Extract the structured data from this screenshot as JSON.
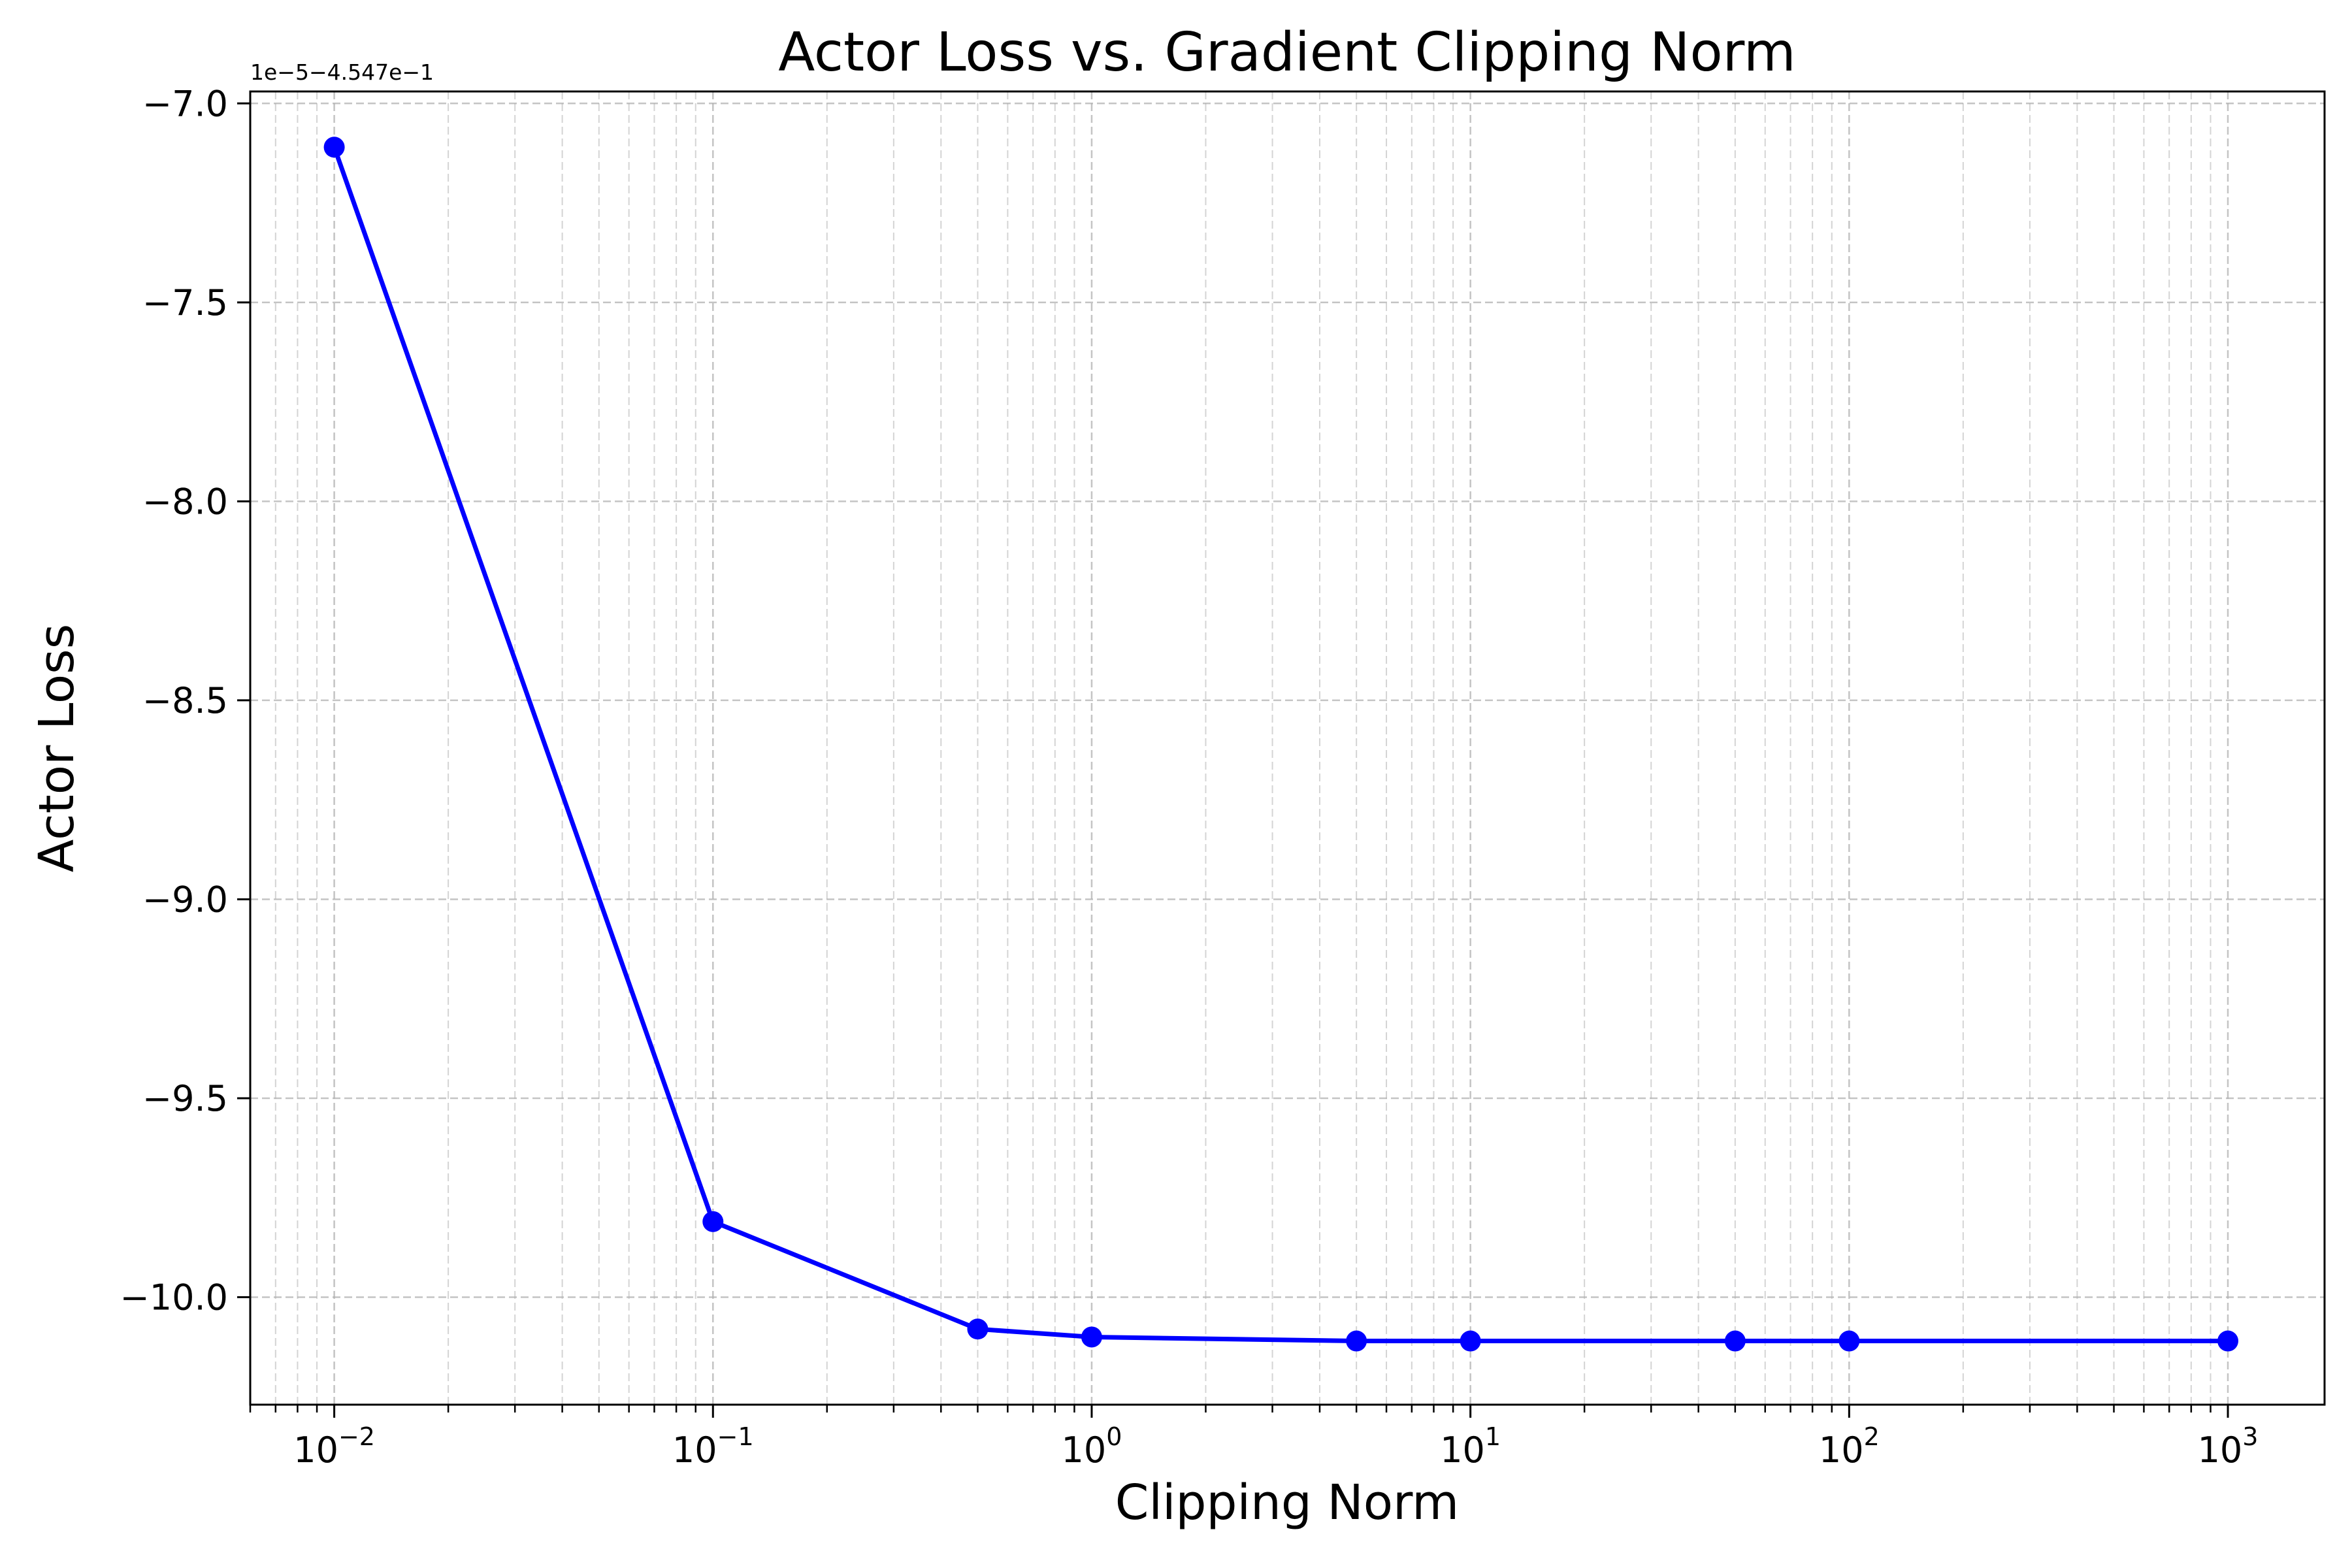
{
  "chart_data": {
    "type": "line",
    "title": "Actor Loss vs. Gradient Clipping Norm",
    "xlabel": "Clipping Norm",
    "ylabel": "Actor Loss",
    "x_scale": "log",
    "xlim": [
      0.006,
      1800
    ],
    "ylim": [
      -10.27,
      -6.97
    ],
    "x_ticks": [
      {
        "value": 0.01,
        "base": "10",
        "exp": "−2"
      },
      {
        "value": 0.1,
        "base": "10",
        "exp": "−1"
      },
      {
        "value": 1,
        "base": "10",
        "exp": "0"
      },
      {
        "value": 10,
        "base": "10",
        "exp": "1"
      },
      {
        "value": 100,
        "base": "10",
        "exp": "2"
      },
      {
        "value": 1000,
        "base": "10",
        "exp": "3"
      }
    ],
    "y_ticks": [
      {
        "value": -7.0,
        "label": "−7.0"
      },
      {
        "value": -7.5,
        "label": "−7.5"
      },
      {
        "value": -8.0,
        "label": "−8.0"
      },
      {
        "value": -8.5,
        "label": "−8.5"
      },
      {
        "value": -9.0,
        "label": "−9.0"
      },
      {
        "value": -9.5,
        "label": "−9.5"
      },
      {
        "value": -10.0,
        "label": "−10.0"
      }
    ],
    "y_offset_text": "1e−5−4.547e−1",
    "grid": true,
    "grid_minor": true,
    "series": [
      {
        "color": "#0000ff",
        "marker": "circle",
        "x": [
          0.01,
          0.1,
          0.5,
          1,
          5,
          10,
          50,
          100,
          1000
        ],
        "y": [
          -7.11,
          -9.81,
          -10.08,
          -10.1,
          -10.11,
          -10.11,
          -10.11,
          -10.11,
          -10.11
        ]
      }
    ]
  }
}
